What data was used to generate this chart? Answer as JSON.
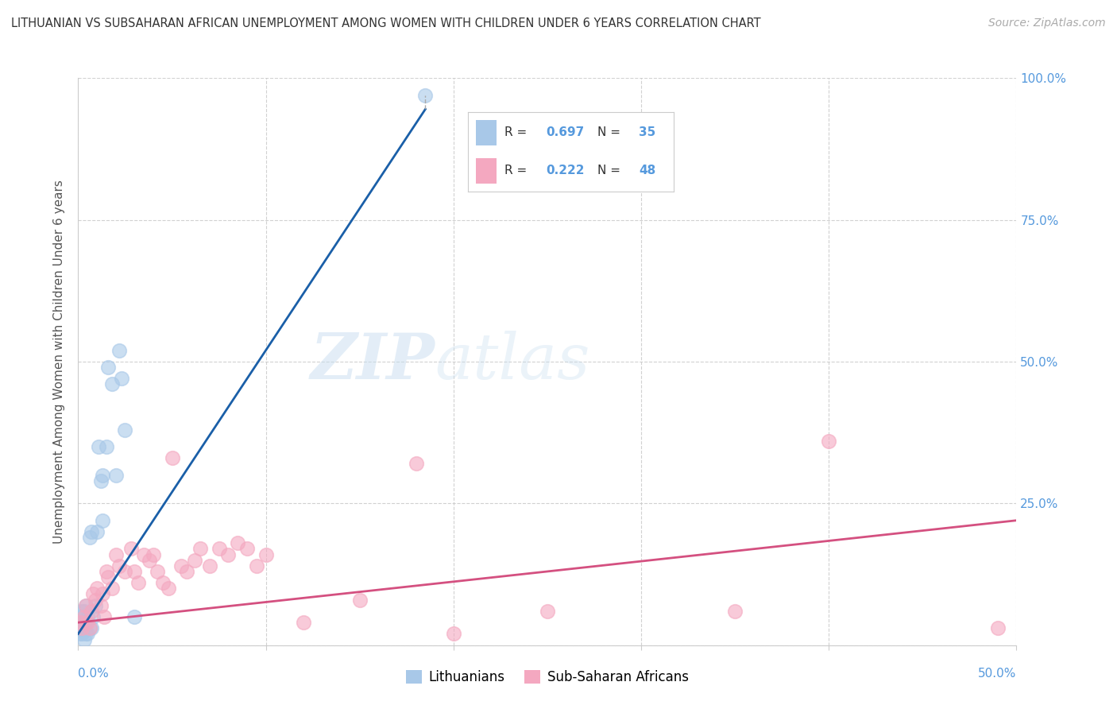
{
  "title": "LITHUANIAN VS SUBSAHARAN AFRICAN UNEMPLOYMENT AMONG WOMEN WITH CHILDREN UNDER 6 YEARS CORRELATION CHART",
  "source": "Source: ZipAtlas.com",
  "ylabel": "Unemployment Among Women with Children Under 6 years",
  "xlim": [
    0,
    0.5
  ],
  "ylim": [
    0,
    1.0
  ],
  "yticks": [
    0.0,
    0.25,
    0.5,
    0.75,
    1.0
  ],
  "ytick_labels": [
    "",
    "25.0%",
    "50.0%",
    "75.0%",
    "100.0%"
  ],
  "watermark_zip": "ZIP",
  "watermark_atlas": "atlas",
  "legend_r1": "0.697",
  "legend_n1": "35",
  "legend_r2": "0.222",
  "legend_n2": "48",
  "color_blue": "#a8c8e8",
  "color_pink": "#f4a8c0",
  "color_blue_line": "#1a5fa8",
  "color_pink_line": "#d45080",
  "color_axis_label": "#5599dd",
  "color_grid": "#cccccc",
  "lith_x": [
    0.001,
    0.001,
    0.001,
    0.002,
    0.002,
    0.002,
    0.003,
    0.003,
    0.003,
    0.003,
    0.004,
    0.004,
    0.004,
    0.005,
    0.005,
    0.006,
    0.006,
    0.007,
    0.007,
    0.008,
    0.009,
    0.01,
    0.011,
    0.012,
    0.013,
    0.013,
    0.015,
    0.016,
    0.018,
    0.02,
    0.022,
    0.023,
    0.025,
    0.03,
    0.185
  ],
  "lith_y": [
    0.02,
    0.03,
    0.05,
    0.02,
    0.04,
    0.06,
    0.01,
    0.03,
    0.04,
    0.06,
    0.02,
    0.04,
    0.07,
    0.02,
    0.05,
    0.03,
    0.19,
    0.03,
    0.2,
    0.05,
    0.07,
    0.2,
    0.35,
    0.29,
    0.22,
    0.3,
    0.35,
    0.49,
    0.46,
    0.3,
    0.52,
    0.47,
    0.38,
    0.05,
    0.97
  ],
  "sub_x": [
    0.001,
    0.002,
    0.003,
    0.004,
    0.005,
    0.006,
    0.007,
    0.008,
    0.009,
    0.01,
    0.012,
    0.013,
    0.014,
    0.015,
    0.016,
    0.018,
    0.02,
    0.022,
    0.025,
    0.028,
    0.03,
    0.032,
    0.035,
    0.038,
    0.04,
    0.042,
    0.045,
    0.048,
    0.05,
    0.055,
    0.058,
    0.062,
    0.065,
    0.07,
    0.075,
    0.08,
    0.085,
    0.09,
    0.095,
    0.1,
    0.12,
    0.15,
    0.18,
    0.2,
    0.25,
    0.35,
    0.4,
    0.49
  ],
  "sub_y": [
    0.04,
    0.03,
    0.05,
    0.07,
    0.04,
    0.03,
    0.06,
    0.09,
    0.08,
    0.1,
    0.07,
    0.09,
    0.05,
    0.13,
    0.12,
    0.1,
    0.16,
    0.14,
    0.13,
    0.17,
    0.13,
    0.11,
    0.16,
    0.15,
    0.16,
    0.13,
    0.11,
    0.1,
    0.33,
    0.14,
    0.13,
    0.15,
    0.17,
    0.14,
    0.17,
    0.16,
    0.18,
    0.17,
    0.14,
    0.16,
    0.04,
    0.08,
    0.32,
    0.02,
    0.06,
    0.06,
    0.36,
    0.03
  ],
  "blue_line_x": [
    0.0,
    0.185
  ],
  "blue_line_y_intercept": 0.02,
  "blue_line_slope": 5.0,
  "pink_line_x": [
    0.0,
    0.5
  ],
  "pink_line_y_intercept": 0.04,
  "pink_line_slope": 0.36
}
